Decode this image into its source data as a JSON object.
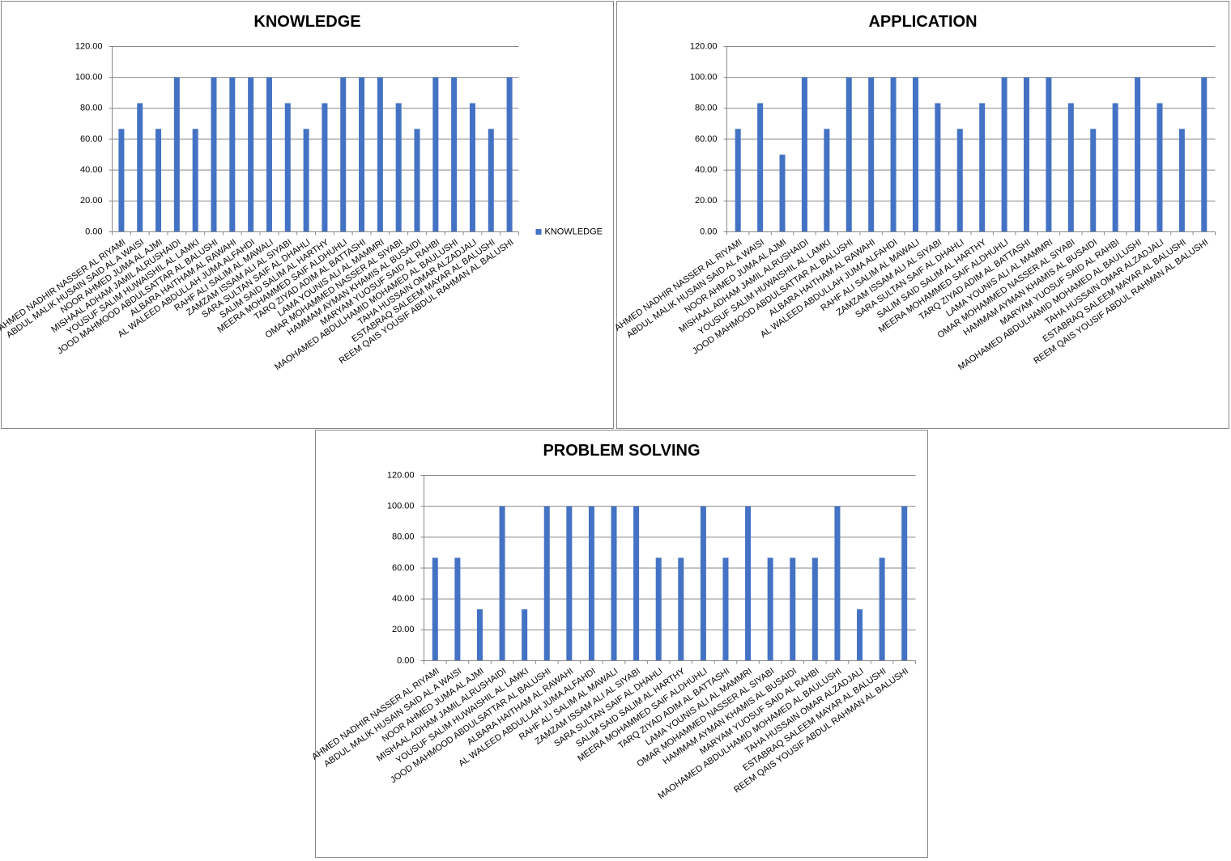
{
  "chart_data": [
    {
      "type": "bar",
      "title": "KNOWLEDGE",
      "categories": [
        "AHMED NADHIR NASSER AL RIYAMI",
        "ABDUL  MALIK HUSAIN SAID AL A WAISI",
        "NOOR AHMED JUMA AL AJMI",
        "MISHAAL ADHAM JAMIL ALRUSHAIDI",
        "YOUSUF SALIM HUWAISHIL AL LAMKI",
        "JOOD MAHMOOD ABDULSATTAR AL BALUSHI",
        "ALBARA HAITHAM  AL RAWAHI",
        "AL WALEED ABDULLAH JUMA ALFAHDI",
        "RAHF ALI SALIM AL MAWALI",
        "ZAMZAM ISSAM ALI AL SIYABI",
        "SARA SULTAN SAIF AL DHAHLI",
        "SALIM SAID SALIM AL HARTHY",
        "MEERA MOHAMMED  SAIF ALDHUHLI",
        "TARQ ZIYAD ADIM AL BATTASHI",
        "LAMA YOUNIS ALI AL MAMMRI",
        "OMAR MOHAMMED  NASSER AL SIYABI",
        "HAMMAM AYMAN KHAMIS AL BUSAIDI",
        "MARYAM YUOSUF SAID AL RAHBI",
        "MAOHAMED ABDULHAMID MOHAMED AL BAULUSHI",
        "TAHA HUSSAIN OMAR ALZADJALI",
        "ESTABRAQ SALEEM MAYAR AL BALUSHI",
        "REEM QAIS YOUSIF ABDUL RAHMAN AL BALUSHI"
      ],
      "series": [
        {
          "name": "KNOWLEDGE",
          "color": "#4472c4",
          "values": [
            66.67,
            83.33,
            66.67,
            100,
            66.67,
            100,
            100,
            100,
            100,
            83.33,
            66.67,
            83.33,
            100,
            100,
            100,
            83.33,
            66.67,
            100,
            100,
            83.33,
            66.67,
            100
          ]
        }
      ],
      "legend": "right",
      "ylim": [
        0,
        120
      ],
      "yticks": [
        {
          "value": 0,
          "label": "0.00"
        },
        {
          "value": 20,
          "label": "20.00"
        },
        {
          "value": 40,
          "label": "40.00"
        },
        {
          "value": 60,
          "label": "60.00"
        },
        {
          "value": 80,
          "label": "80.00"
        },
        {
          "value": 100,
          "label": "100.00"
        },
        {
          "value": 120,
          "label": "120.00"
        }
      ],
      "grid": true
    },
    {
      "type": "bar",
      "title": "APPLICATION",
      "categories": [
        "AHMED NADHIR NASSER AL RIYAMI",
        "ABDUL  MALIK HUSAIN SAID AL A WAISI",
        "NOOR AHMED JUMA AL AJMI",
        "MISHAAL ADHAM JAMIL ALRUSHAIDI",
        "YOUSUF SALIM HUWAISHIL AL LAMKI",
        "JOOD MAHMOOD ABDULSATTAR AL BALUSHI",
        "ALBARA HAITHAM  AL RAWAHI",
        "AL WALEED ABDULLAH JUMA ALFAHDI",
        "RAHF ALI SALIM AL MAWALI",
        "ZAMZAM ISSAM ALI AL SIYABI",
        "SARA SULTAN SAIF AL DHAHLI",
        "SALIM SAID SALIM AL HARTHY",
        "MEERA MOHAMMED  SAIF ALDHUHLI",
        "TARQ ZIYAD ADIM AL BATTASHI",
        "LAMA YOUNIS ALI AL MAMMRI",
        "OMAR MOHAMMED  NASSER AL SIYABI",
        "HAMMAM AYMAN KHAMIS AL BUSAIDI",
        "MARYAM YUOSUF SAID AL RAHBI",
        "MAOHAMED ABDULHAMID MOHAMED AL BAULUSHI",
        "TAHA HUSSAIN OMAR ALZADJALI",
        "ESTABRAQ SALEEM MAYAR AL BALUSHI",
        "REEM QAIS YOUSIF ABDUL RAHMAN AL BALUSHI"
      ],
      "values": [
        66.67,
        83.33,
        50,
        100,
        66.67,
        100,
        100,
        100,
        100,
        83.33,
        66.67,
        83.33,
        100,
        100,
        100,
        83.33,
        66.67,
        83.33,
        100,
        83.33,
        66.67,
        100
      ],
      "color": "#4472c4",
      "ylim": [
        0,
        120
      ],
      "yticks": [
        {
          "value": 0,
          "label": "0.00"
        },
        {
          "value": 20,
          "label": "20.00"
        },
        {
          "value": 40,
          "label": "40.00"
        },
        {
          "value": 60,
          "label": "60.00"
        },
        {
          "value": 80,
          "label": "80.00"
        },
        {
          "value": 100,
          "label": "100.00"
        },
        {
          "value": 120,
          "label": "120.00"
        }
      ],
      "grid": true
    },
    {
      "type": "bar",
      "title": "PROBLEM SOLVING",
      "categories": [
        "AHMED NADHIR NASSER AL RIYAMI",
        "ABDUL  MALIK HUSAIN SAID AL A WAISI",
        "NOOR AHMED JUMA AL AJMI",
        "MISHAAL ADHAM JAMIL ALRUSHAIDI",
        "YOUSUF SALIM HUWAISHIL AL LAMKI",
        "JOOD MAHMOOD ABDULSATTAR AL BALUSHI",
        "ALBARA HAITHAM  AL RAWAHI",
        "AL WALEED ABDULLAH JUMA ALFAHDI",
        "RAHF ALI SALIM AL MAWALI",
        "ZAMZAM ISSAM ALI AL SIYABI",
        "SARA SULTAN SAIF AL DHAHLI",
        "SALIM SAID SALIM AL HARTHY",
        "MEERA MOHAMMED  SAIF ALDHUHLI",
        "TARQ ZIYAD ADIM AL BATTASHI",
        "LAMA YOUNIS ALI AL MAMMRI",
        "OMAR MOHAMMED  NASSER AL SIYABI",
        "HAMMAM AYMAN KHAMIS AL BUSAIDI",
        "MARYAM YUOSUF SAID AL RAHBI",
        "MAOHAMED ABDULHAMID MOHAMED AL BAULUSHI",
        "TAHA HUSSAIN OMAR ALZADJALI",
        "ESTABRAQ SALEEM MAYAR AL BALUSHI",
        "REEM QAIS YOUSIF ABDUL RAHMAN AL BALUSHI"
      ],
      "values": [
        66.67,
        66.67,
        33.33,
        100,
        33.33,
        100,
        100,
        100,
        100,
        100,
        66.67,
        66.67,
        100,
        66.67,
        100,
        66.67,
        66.67,
        66.67,
        100,
        33.33,
        66.67,
        100
      ],
      "color": "#4472c4",
      "ylim": [
        0,
        120
      ],
      "yticks": [
        {
          "value": 0,
          "label": "0.00"
        },
        {
          "value": 20,
          "label": "20.00"
        },
        {
          "value": 40,
          "label": "40.00"
        },
        {
          "value": 60,
          "label": "60.00"
        },
        {
          "value": 80,
          "label": "80.00"
        },
        {
          "value": 100,
          "label": "100.00"
        },
        {
          "value": 120,
          "label": "120.00"
        }
      ],
      "grid": true
    }
  ]
}
